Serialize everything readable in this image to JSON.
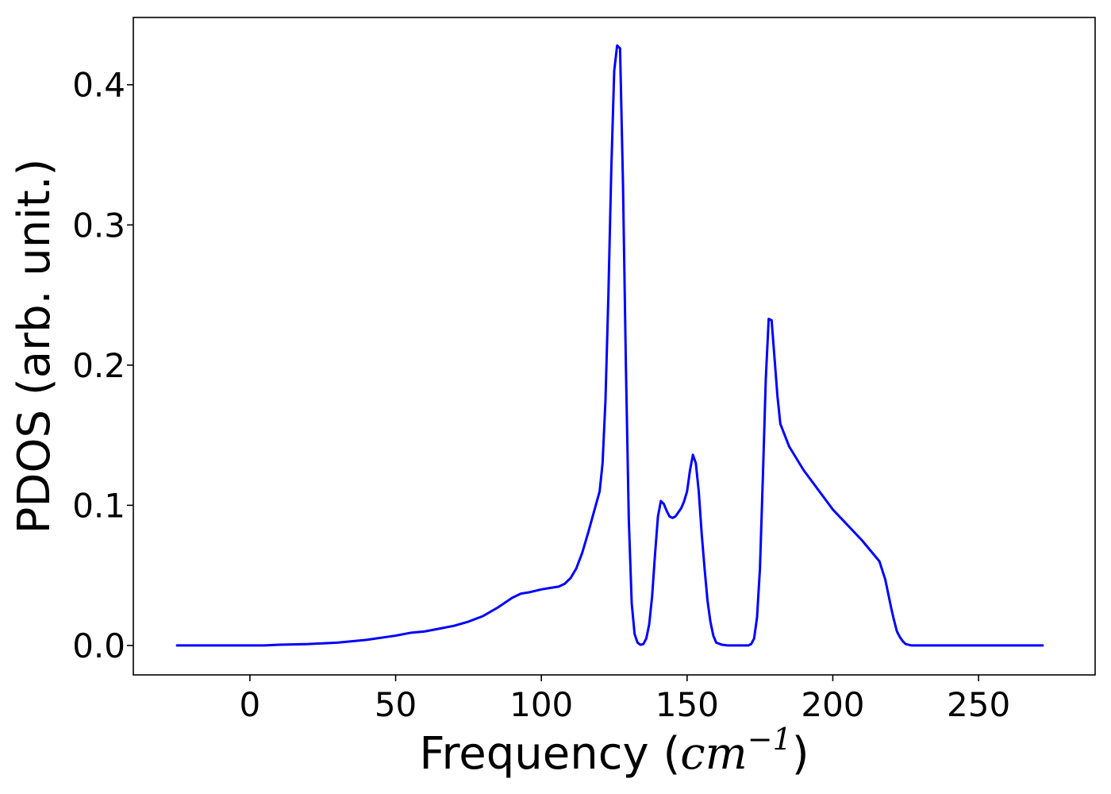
{
  "chart_data": {
    "type": "line",
    "title": "",
    "xlabel_prefix": "Frequency (",
    "xlabel_math": "cm",
    "xlabel_sup": "−1",
    "xlabel_suffix": ")",
    "ylabel": "PDOS (arb. unit.)",
    "xlim": [
      -40,
      290
    ],
    "ylim": [
      -0.021,
      0.448
    ],
    "xticks": [
      0,
      50,
      100,
      150,
      200,
      250
    ],
    "xtick_labels": [
      "0",
      "50",
      "100",
      "150",
      "200",
      "250"
    ],
    "yticks": [
      0.0,
      0.1,
      0.2,
      0.3,
      0.4
    ],
    "ytick_labels": [
      "0.0",
      "0.1",
      "0.2",
      "0.3",
      "0.4"
    ],
    "grid": false,
    "series": [
      {
        "color": "#0000ff",
        "x": [
          -25,
          0,
          5,
          10,
          20,
          30,
          40,
          50,
          55,
          60,
          65,
          70,
          75,
          80,
          85,
          90,
          93,
          96,
          100,
          103,
          106,
          108,
          110,
          112,
          114,
          116,
          118,
          120,
          121,
          122,
          123,
          124,
          125,
          126,
          127,
          128,
          129,
          130,
          131,
          132,
          133,
          134,
          135,
          136,
          137,
          138,
          139,
          140,
          141,
          142,
          143,
          144,
          145,
          146,
          147,
          148,
          149,
          150,
          151,
          152,
          153,
          154,
          155,
          156,
          157,
          158,
          159,
          160,
          162,
          164,
          166,
          168,
          170,
          171,
          172,
          173,
          174,
          175,
          176,
          177,
          178,
          179,
          180,
          181,
          182,
          185,
          190,
          200,
          210,
          216,
          218,
          219,
          220,
          221,
          222,
          223,
          224,
          225,
          226,
          227,
          228,
          229,
          230,
          231,
          232,
          234,
          236,
          238,
          240,
          242,
          244,
          246,
          248,
          249,
          250,
          251,
          252,
          253,
          255,
          260,
          265,
          272
        ],
        "y": [
          0.0,
          0.0,
          0.0,
          0.0005,
          0.001,
          0.002,
          0.004,
          0.007,
          0.009,
          0.01,
          0.012,
          0.014,
          0.017,
          0.021,
          0.027,
          0.034,
          0.037,
          0.038,
          0.04,
          0.041,
          0.042,
          0.044,
          0.048,
          0.055,
          0.066,
          0.08,
          0.095,
          0.11,
          0.13,
          0.175,
          0.25,
          0.34,
          0.41,
          0.428,
          0.426,
          0.33,
          0.2,
          0.09,
          0.03,
          0.008,
          0.002,
          0.0005,
          0.001,
          0.005,
          0.015,
          0.035,
          0.065,
          0.092,
          0.103,
          0.101,
          0.096,
          0.092,
          0.091,
          0.092,
          0.095,
          0.098,
          0.103,
          0.11,
          0.125,
          0.136,
          0.13,
          0.11,
          0.08,
          0.055,
          0.032,
          0.017,
          0.007,
          0.002,
          0.0005,
          0.0,
          0.0,
          0.0,
          0.0,
          0.0,
          0.001,
          0.005,
          0.02,
          0.055,
          0.12,
          0.19,
          0.233,
          0.232,
          0.205,
          0.178,
          0.158,
          0.142,
          0.125,
          0.097,
          0.075,
          0.06,
          0.047,
          0.037,
          0.027,
          0.018,
          0.01,
          0.006,
          0.003,
          0.001,
          0.0005,
          0.0,
          0.0,
          0.0,
          0.0,
          0.0,
          0.0,
          0.0,
          0.0,
          0.0,
          0.0,
          0.0,
          0.0,
          0.0,
          0.0,
          0.0,
          0.0,
          0.0,
          0.0,
          0.0,
          0.0,
          0.0,
          0.0,
          0.0
        ]
      }
    ]
  }
}
